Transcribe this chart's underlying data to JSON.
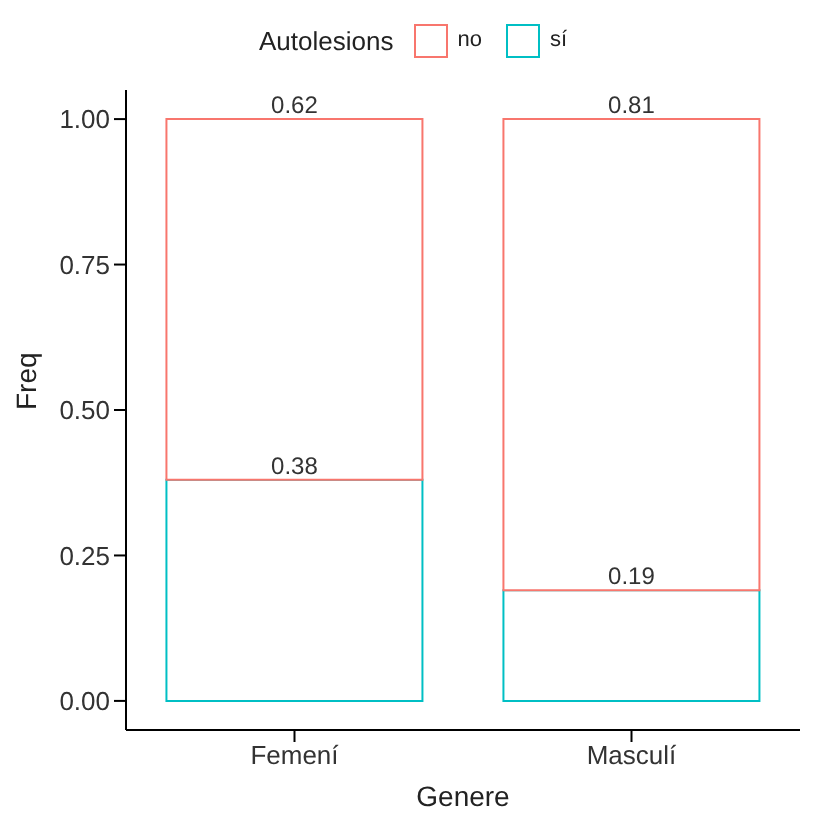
{
  "chart_data": {
    "type": "bar",
    "stacked": true,
    "xlabel": "Genere",
    "ylabel": "Freq",
    "legend_title": "Autolesions",
    "legend": "top",
    "data_labels": true,
    "grid": false,
    "categories": [
      "Femení",
      "Masculí"
    ],
    "series": [
      {
        "name": "sí",
        "color": "#00bfc4",
        "values": [
          0.38,
          0.19
        ]
      },
      {
        "name": "no",
        "color": "#f8766d",
        "values": [
          0.62,
          0.81
        ]
      }
    ],
    "ylim": [
      -0.05,
      1.05
    ],
    "yticks": [
      {
        "value": 0,
        "label": "0.00"
      },
      {
        "value": 0.25,
        "label": "0.25"
      },
      {
        "value": 0.5,
        "label": "0.50"
      },
      {
        "value": 0.75,
        "label": "0.75"
      },
      {
        "value": 1,
        "label": "1.00"
      }
    ]
  }
}
